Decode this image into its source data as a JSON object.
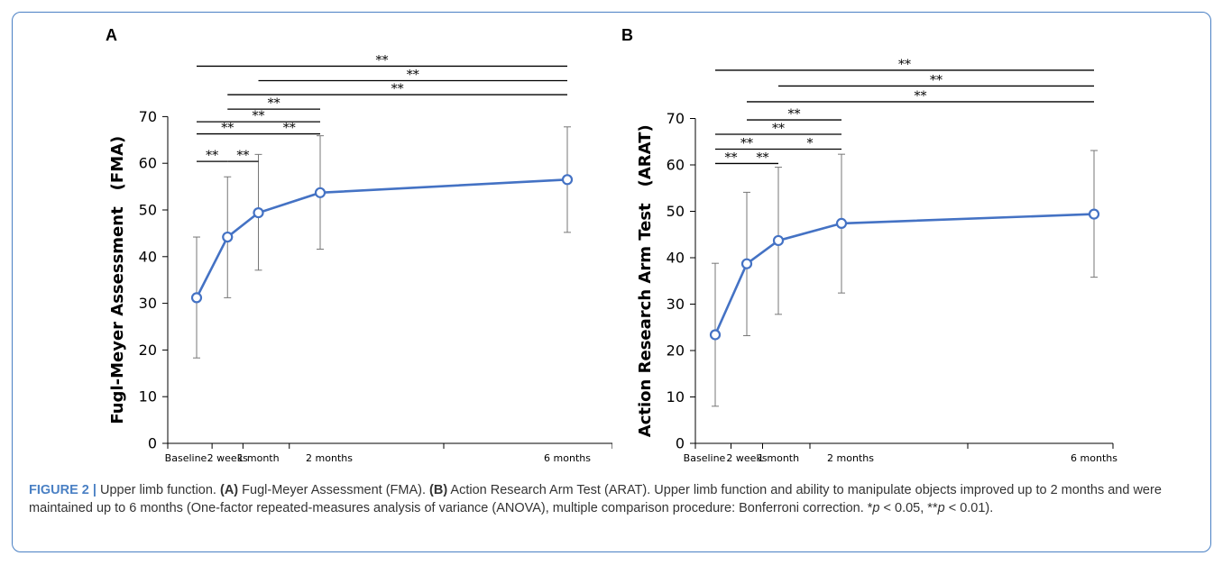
{
  "chart_data": [
    {
      "panel": "A",
      "type": "line",
      "ylabel": "Fugl-Meyer Assessment　(FMA)",
      "ylim": [
        0,
        70
      ],
      "yticks": [
        0,
        10,
        20,
        30,
        40,
        50,
        60,
        70
      ],
      "x": [
        0,
        0.5,
        1,
        2,
        6
      ],
      "categories": [
        "Baseline",
        "2 weeks",
        "1 month",
        "2 months",
        "6 months"
      ],
      "values": [
        31.2,
        44.2,
        49.4,
        53.7,
        56.5
      ],
      "error_upper": [
        44.2,
        57.1,
        61.9,
        65.9,
        67.8
      ],
      "error_lower": [
        18.3,
        31.2,
        37.1,
        41.6,
        45.2
      ],
      "line_color": "#4472c4",
      "significance": [
        {
          "from": 0,
          "to": 1,
          "label": "**",
          "level": 60.4
        },
        {
          "from": 1,
          "to": 2,
          "label": "**",
          "level": 60.4
        },
        {
          "from": 0,
          "to": 2,
          "label": "**",
          "level": 66.3
        },
        {
          "from": 2,
          "to": 3,
          "label": "**",
          "level": 66.3
        },
        {
          "from": 0,
          "to": 3,
          "label": "**",
          "level": 68.9
        },
        {
          "from": 1,
          "to": 3,
          "label": "**",
          "level": 71.6
        },
        {
          "from": 1,
          "to": 4,
          "label": "**",
          "level": 74.7
        },
        {
          "from": 2,
          "to": 4,
          "label": "**",
          "level": 77.7
        },
        {
          "from": 0,
          "to": 4,
          "label": "**",
          "level": 80.8
        }
      ]
    },
    {
      "panel": "B",
      "type": "line",
      "ylabel": "Action Research Arm Test　(ARAT)",
      "ylim": [
        0,
        70
      ],
      "yticks": [
        0,
        10,
        20,
        30,
        40,
        50,
        60,
        70
      ],
      "x": [
        0,
        0.5,
        1,
        2,
        6
      ],
      "categories": [
        "Baseline",
        "2 weeks",
        "1 month",
        "2 months",
        "6 months"
      ],
      "values": [
        23.4,
        38.7,
        43.7,
        47.4,
        49.4
      ],
      "error_upper": [
        38.8,
        54.1,
        59.5,
        62.3,
        63.1
      ],
      "error_lower": [
        8.0,
        23.2,
        27.8,
        32.4,
        35.8
      ],
      "line_color": "#4472c4",
      "significance": [
        {
          "from": 0,
          "to": 1,
          "label": "**",
          "level": 60.3
        },
        {
          "from": 1,
          "to": 2,
          "label": "**",
          "level": 60.3
        },
        {
          "from": 0,
          "to": 2,
          "label": "**",
          "level": 63.4
        },
        {
          "from": 2,
          "to": 3,
          "label": "*",
          "level": 63.4
        },
        {
          "from": 0,
          "to": 3,
          "label": "**",
          "level": 66.6
        },
        {
          "from": 1,
          "to": 3,
          "label": "**",
          "level": 69.7
        },
        {
          "from": 1,
          "to": 4,
          "label": "**",
          "level": 73.6
        },
        {
          "from": 2,
          "to": 4,
          "label": "**",
          "level": 77.0
        },
        {
          "from": 0,
          "to": 4,
          "label": "**",
          "level": 80.4
        }
      ]
    }
  ],
  "caption": {
    "figure_label": "FIGURE 2",
    "separator": "|",
    "title": "Upper limb function.",
    "part_a_tag": "(A)",
    "part_a_text": "Fugl-Meyer Assessment (FMA).",
    "part_b_tag": "(B)",
    "part_b_text": "Action Research Arm Test (ARAT). Upper limb function and ability to manipulate objects improved up to 2 months and were maintained up to 6 months (One-factor repeated-measures analysis of variance (ANOVA), multiple comparison procedure: Bonferroni correction. *",
    "p_symbol_1": "p",
    "p_text_1": " < 0.05, **",
    "p_symbol_2": "p",
    "p_text_2": " < 0.01)."
  }
}
